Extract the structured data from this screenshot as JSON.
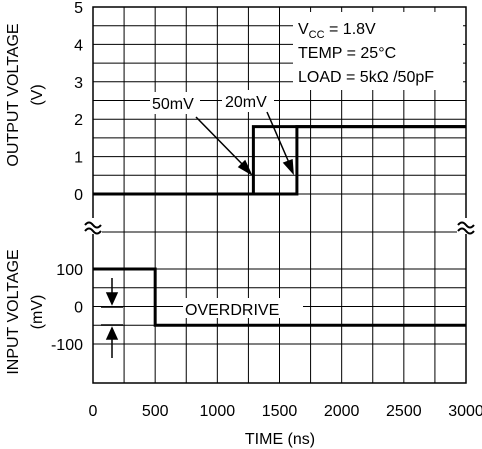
{
  "chart_data": {
    "type": "line",
    "xlabel": "TIME (ns)",
    "xlim": [
      0,
      3000
    ],
    "x_ticks": [
      "0",
      "500",
      "1000",
      "1500",
      "2000",
      "2500",
      "3000"
    ],
    "grid": true,
    "upper_panel": {
      "ylabel_line1": "OUTPUT VOLTAGE",
      "ylabel_line2": "(V)",
      "ylim": [
        0,
        5
      ],
      "y_ticks": [
        "0",
        "1",
        "2",
        "3",
        "4",
        "5"
      ],
      "conditions": {
        "vcc_prefix": "V",
        "vcc_sub": "CC",
        "vcc_value": " = 1.8V",
        "temp": "TEMP = 25°C",
        "load": "LOAD = 5kΩ /50pF"
      },
      "series": [
        {
          "name": "50mV",
          "x": [
            0,
            1290,
            1290,
            3000
          ],
          "y": [
            0,
            0,
            1.8,
            1.8
          ]
        },
        {
          "name": "20mV",
          "x": [
            0,
            1640,
            1640,
            3000
          ],
          "y": [
            0,
            0,
            1.8,
            1.8
          ]
        }
      ]
    },
    "lower_panel": {
      "ylabel_line1": "INPUT VOLTAGE",
      "ylabel_line2": "(mV)",
      "ylim": [
        -150,
        150
      ],
      "y_ticks": [
        "100",
        "0",
        "-100"
      ],
      "annotation": "OVERDRIVE",
      "series": [
        {
          "x": [
            0,
            500,
            500,
            3000
          ],
          "y": [
            100,
            100,
            -50,
            -50
          ]
        }
      ]
    }
  }
}
